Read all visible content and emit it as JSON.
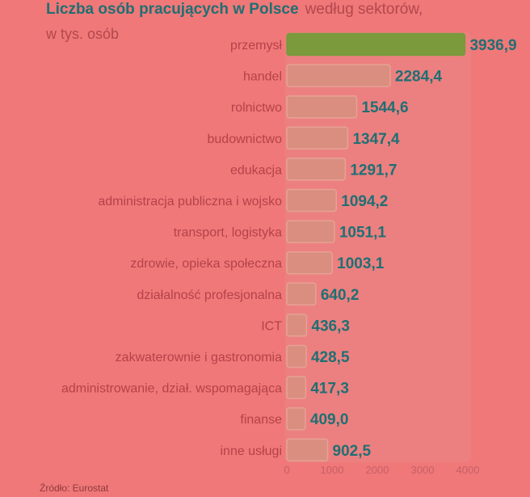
{
  "title": "Liczba osób pracujących w Polsce",
  "title_suffix": "według sektorów,",
  "subtitle": "w tys. osób",
  "source": "Źródło: Eurostat",
  "colors": {
    "highlight_bar": "#7A9A3C",
    "bar": "#D98E80",
    "bar_border": "#E6A294",
    "value_label": "#1F6F73",
    "category_label": "#B5424A",
    "tick_label": "#C66068",
    "panel": "#EC8080"
  },
  "chart_data": {
    "type": "bar",
    "orientation": "horizontal",
    "categories": [
      "przemysł",
      "handel",
      "rolnictwo",
      "budownictwo",
      "edukacja",
      "administracja publiczna i wojsko",
      "transport, logistyka",
      "zdrowie, opieka społeczna",
      "działalność profesjonalna",
      "ICT",
      "zakwaterownie i gastronomia",
      "administrowanie, dział. wspomagająca",
      "finanse",
      "inne usługi"
    ],
    "values": [
      3936.9,
      2284.4,
      1544.6,
      1347.4,
      1291.7,
      1094.2,
      1051.1,
      1003.1,
      640.2,
      436.3,
      428.5,
      417.3,
      409.0,
      902.5
    ],
    "value_labels": [
      "3936,9",
      "2284,4",
      "1544,6",
      "1347,4",
      "1291,7",
      "1094,2",
      "1051,1",
      "1003,1",
      "640,2",
      "436,3",
      "428,5",
      "417,3",
      "409,0",
      "902,5"
    ],
    "highlight_index": 0,
    "xlim": [
      0,
      4000
    ],
    "xticks": [
      0,
      1000,
      2000,
      3000,
      4000
    ],
    "xtick_labels": [
      "0",
      "1000",
      "2000",
      "3000",
      "4000"
    ],
    "grid": false,
    "legend": "none"
  }
}
